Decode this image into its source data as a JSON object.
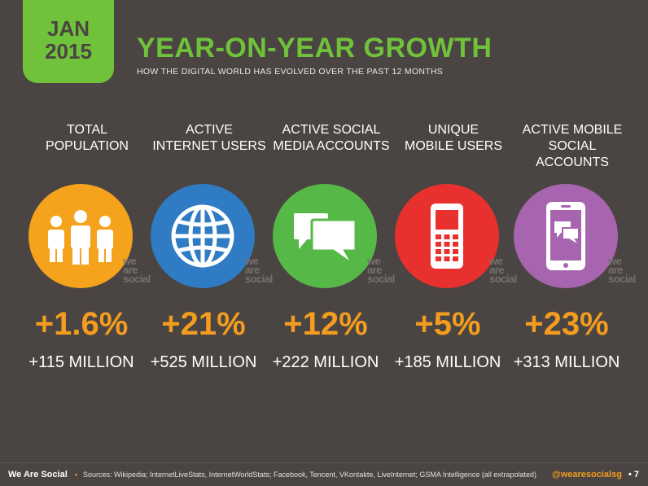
{
  "header": {
    "month": "JAN",
    "year": "2015",
    "title": "YEAR-ON-YEAR GROWTH",
    "subtitle": "HOW THE DIGITAL WORLD HAS EVOLVED OVER THE PAST 12 MONTHS"
  },
  "watermark": {
    "line1": "we",
    "line2": "are",
    "line3": "social"
  },
  "metrics": [
    {
      "label_line1": "TOTAL",
      "label_line2": "POPULATION",
      "percent": "+1.6%",
      "absolute": "+115 MILLION",
      "color": "#f5a21c",
      "icon": "people-icon"
    },
    {
      "label_line1": "ACTIVE",
      "label_line2": "INTERNET USERS",
      "percent": "+21%",
      "absolute": "+525 MILLION",
      "color": "#2f7bc4",
      "icon": "globe-icon"
    },
    {
      "label_line1": "ACTIVE SOCIAL",
      "label_line2": "MEDIA ACCOUNTS",
      "percent": "+12%",
      "absolute": "+222 MILLION",
      "color": "#56b947",
      "icon": "chat-bubbles-icon"
    },
    {
      "label_line1": "UNIQUE",
      "label_line2": "MOBILE USERS",
      "percent": "+5%",
      "absolute": "+185 MILLION",
      "color": "#e8312f",
      "icon": "mobile-phone-icon"
    },
    {
      "label_line1": "ACTIVE MOBILE",
      "label_line2": "SOCIAL ACCOUNTS",
      "percent": "+23%",
      "absolute": "+313 MILLION",
      "color": "#a765b0",
      "icon": "smartphone-chat-icon"
    }
  ],
  "footer": {
    "brand": "We Are Social",
    "separator": "•",
    "sources": "Sources: Wikipedia; InternetLiveStats, InternetWorldStats; Facebook, Tencent, VKontakte, LiveInternet; GSMA Intelligence (all extrapolated)",
    "handle": "@wearesocialsg",
    "page": "• 7"
  },
  "colors": {
    "background": "#4a4542",
    "accent_green": "#6fc23a",
    "accent_orange": "#f39c1f"
  }
}
